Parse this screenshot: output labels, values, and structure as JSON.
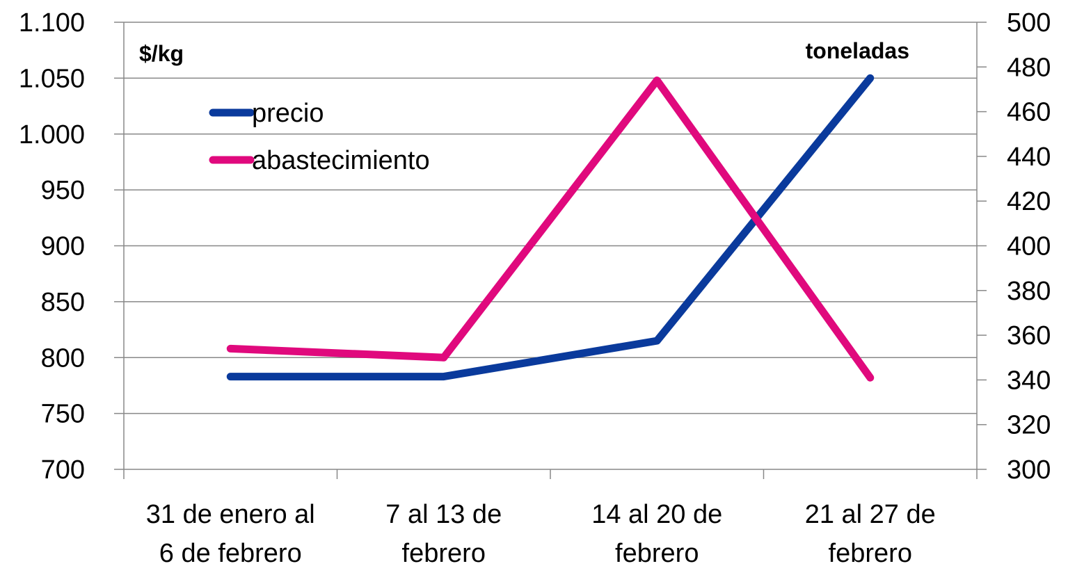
{
  "chart_data": {
    "type": "line",
    "categories": [
      [
        "31 de enero al",
        "6 de febrero"
      ],
      [
        "7 al 13 de",
        "febrero"
      ],
      [
        "14 al 20 de",
        "febrero"
      ],
      [
        "21 al 27 de",
        "febrero"
      ]
    ],
    "y_left": {
      "label": "$/kg",
      "ylim": [
        700,
        1100
      ],
      "ticks": [
        "700",
        "750",
        "800",
        "850",
        "900",
        "950",
        "1.000",
        "1.050",
        "1.100"
      ],
      "tick_values": [
        700,
        750,
        800,
        850,
        900,
        950,
        1000,
        1050,
        1100
      ]
    },
    "y_right": {
      "label": "toneladas",
      "ylim": [
        300,
        500
      ],
      "ticks": [
        "300",
        "320",
        "340",
        "360",
        "380",
        "400",
        "420",
        "440",
        "460",
        "480",
        "500"
      ],
      "tick_values": [
        300,
        320,
        340,
        360,
        380,
        400,
        420,
        440,
        460,
        480,
        500
      ]
    },
    "series": [
      {
        "name": "precio",
        "axis": "left",
        "color": "#0a3a9c",
        "values": [
          783,
          783,
          815,
          1050
        ]
      },
      {
        "name": "abastecimiento",
        "axis": "right",
        "color": "#e0097d",
        "values": [
          354,
          350,
          474,
          341
        ]
      }
    ],
    "grid": true,
    "legend_position": "top-left"
  }
}
